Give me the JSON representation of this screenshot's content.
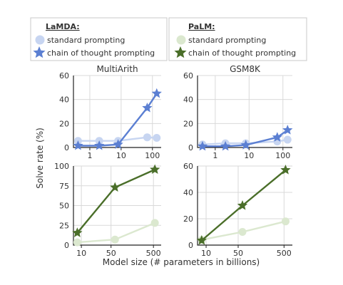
{
  "legends": [
    {
      "title": "LaMDA:",
      "items": [
        {
          "label": "standard prompting",
          "marker": "circle",
          "color": "#c7d5f1"
        },
        {
          "label": "chain of thought prompting",
          "marker": "star",
          "color": "#5b7fd2"
        }
      ]
    },
    {
      "title": "PaLM:",
      "items": [
        {
          "label": "standard prompting",
          "marker": "circle",
          "color": "#dbe8cf"
        },
        {
          "label": "chain of thought prompting",
          "marker": "star",
          "color": "#4a6e29"
        }
      ]
    }
  ],
  "xlabel": "Model size (# parameters in billions)",
  "ylabel": "Solve rate (%)",
  "chart_data": [
    {
      "type": "line",
      "title": "MultiArith",
      "model": "LaMDA",
      "xscale": "log",
      "xlim": [
        0.3,
        190
      ],
      "ylim": [
        0,
        60
      ],
      "xticks": [
        1,
        10,
        100
      ],
      "xtick_labels": [
        "1",
        "10",
        "100"
      ],
      "yticks": [
        0,
        20,
        40,
        60
      ],
      "ytick_labels": [
        "0",
        "20",
        "40",
        "60"
      ],
      "grid": true,
      "colors": {
        "standard": "#c7d5f1",
        "cot": "#5b7fd2"
      },
      "series": [
        {
          "key": "standard",
          "marker": "circle",
          "x": [
            0.42,
            2,
            8,
            68,
            137
          ],
          "y": [
            5.5,
            5.5,
            5.5,
            8.5,
            8
          ]
        },
        {
          "key": "cot",
          "marker": "star",
          "x": [
            0.42,
            2,
            8,
            68,
            137
          ],
          "y": [
            1.5,
            1.5,
            2.5,
            33,
            45
          ]
        }
      ]
    },
    {
      "type": "line",
      "title": "GSM8K",
      "model": "LaMDA",
      "xscale": "log",
      "xlim": [
        0.3,
        190
      ],
      "ylim": [
        0,
        60
      ],
      "xticks": [
        1,
        10,
        100
      ],
      "xtick_labels": [
        "1",
        "10",
        "100"
      ],
      "yticks": [
        0,
        20,
        40,
        60
      ],
      "ytick_labels": [
        "0",
        "20",
        "40",
        "60"
      ],
      "grid": true,
      "colors": {
        "standard": "#c7d5f1",
        "cot": "#5b7fd2"
      },
      "series": [
        {
          "key": "standard",
          "marker": "circle",
          "x": [
            0.42,
            2,
            8,
            68,
            137
          ],
          "y": [
            2.5,
            3.5,
            3.5,
            5,
            6.5
          ]
        },
        {
          "key": "cot",
          "marker": "star",
          "x": [
            0.42,
            2,
            8,
            68,
            137
          ],
          "y": [
            1,
            1,
            2,
            8.5,
            14.5
          ]
        }
      ]
    },
    {
      "type": "line",
      "title": "",
      "model": "PaLM",
      "xscale": "log",
      "xlim": [
        6.5,
        760
      ],
      "ylim": [
        0,
        100
      ],
      "xticks": [
        10,
        50,
        500
      ],
      "xtick_labels": [
        "10",
        "50",
        "500"
      ],
      "yticks": [
        0,
        25,
        50,
        75,
        100
      ],
      "ytick_labels": [
        "0",
        "25",
        "50",
        "75",
        "100"
      ],
      "grid": true,
      "colors": {
        "standard": "#dbe8cf",
        "cot": "#4a6e29"
      },
      "series": [
        {
          "key": "standard",
          "marker": "circle",
          "x": [
            8,
            62,
            540
          ],
          "y": [
            3.5,
            7,
            28
          ]
        },
        {
          "key": "cot",
          "marker": "star",
          "x": [
            8,
            62,
            540
          ],
          "y": [
            15.5,
            73,
            95.5
          ]
        }
      ]
    },
    {
      "type": "line",
      "title": "",
      "model": "PaLM",
      "xscale": "log",
      "xlim": [
        6.5,
        760
      ],
      "ylim": [
        0,
        60
      ],
      "xticks": [
        10,
        50,
        500
      ],
      "xtick_labels": [
        "10",
        "50",
        "500"
      ],
      "yticks": [
        0,
        20,
        40,
        60
      ],
      "ytick_labels": [
        "0",
        "20",
        "40",
        "60"
      ],
      "grid": true,
      "colors": {
        "standard": "#dbe8cf",
        "cot": "#4a6e29"
      },
      "series": [
        {
          "key": "standard",
          "marker": "circle",
          "x": [
            8,
            62,
            540
          ],
          "y": [
            4,
            10,
            18
          ]
        },
        {
          "key": "cot",
          "marker": "star",
          "x": [
            8,
            62,
            540
          ],
          "y": [
            3.5,
            30,
            57
          ]
        }
      ]
    }
  ]
}
